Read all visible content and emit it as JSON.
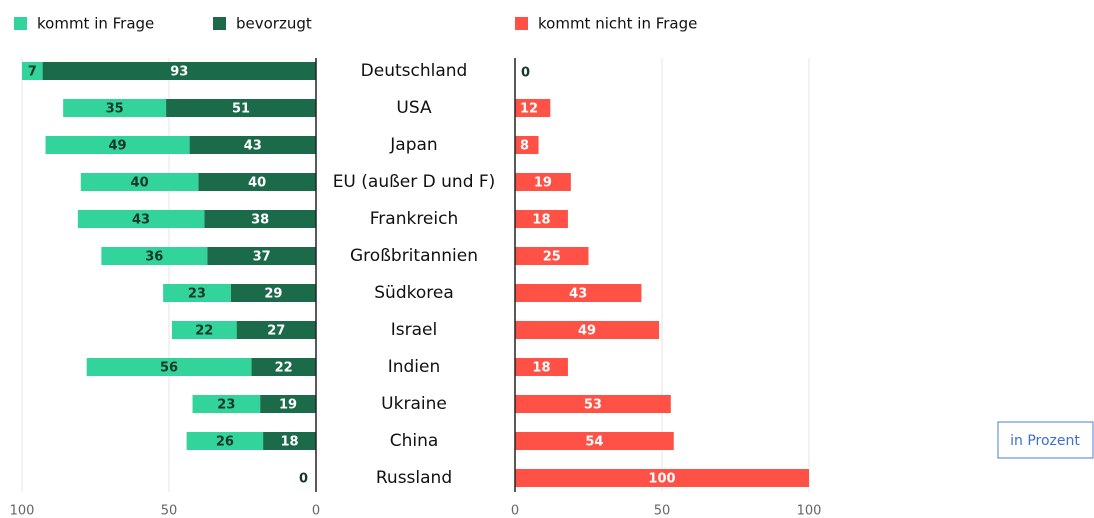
{
  "chart_data": {
    "type": "diverging-bar",
    "categories": [
      "Deutschland",
      "USA",
      "Japan",
      "EU (außer D und F)",
      "Frankreich",
      "Großbritannien",
      "Südkorea",
      "Israel",
      "Indien",
      "Ukraine",
      "China",
      "Russland"
    ],
    "series": [
      {
        "name": "kommt in Frage",
        "color": "#33d39c",
        "label_color": "#16382a",
        "panel": "left",
        "values": [
          7,
          35,
          49,
          40,
          43,
          36,
          23,
          22,
          56,
          23,
          26,
          null
        ]
      },
      {
        "name": "bevorzugt",
        "color": "#1b6b4b",
        "label_color": "#ffffff",
        "panel": "left",
        "values": [
          93,
          51,
          43,
          40,
          38,
          37,
          29,
          27,
          22,
          19,
          18,
          0
        ]
      },
      {
        "name": "kommt nicht in Frage",
        "color": "#ff5145",
        "label_color": "#ffffff",
        "panel": "right",
        "values": [
          0,
          12,
          8,
          19,
          18,
          25,
          43,
          49,
          18,
          53,
          54,
          100
        ]
      }
    ],
    "xlim": [
      0,
      100
    ],
    "xticks": [
      0,
      50,
      100
    ],
    "x2lim": [
      0,
      100
    ],
    "x2ticks": [
      0,
      50,
      100
    ],
    "grid": true,
    "annotation": "in Prozent"
  }
}
